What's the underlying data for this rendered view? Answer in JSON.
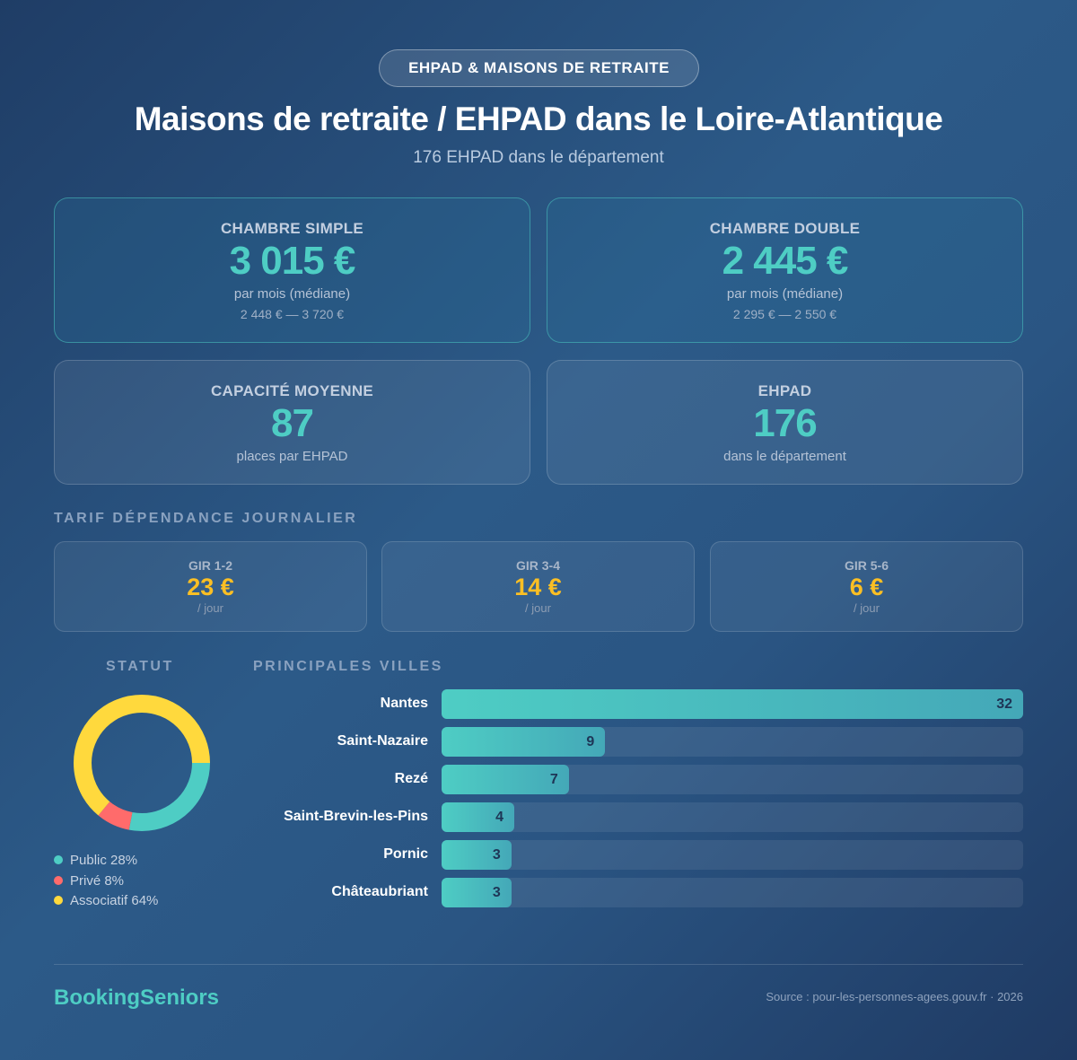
{
  "badge": "EHPAD & MAISONS DE RETRAITE",
  "title": "Maisons de retraite / EHPAD dans le Loire-Atlantique",
  "subtitle": "176 EHPAD dans le département",
  "cards": [
    {
      "label": "CHAMBRE SIMPLE",
      "value": "3 015 €",
      "unit": "par mois (médiane)",
      "range": "2 448 € — 3 720 €"
    },
    {
      "label": "CHAMBRE DOUBLE",
      "value": "2 445 €",
      "unit": "par mois (médiane)",
      "range": "2 295 € — 2 550 €"
    },
    {
      "label": "CAPACITÉ MOYENNE",
      "value": "87",
      "unit": "places par EHPAD"
    },
    {
      "label": "EHPAD",
      "value": "176",
      "unit": "dans le département"
    }
  ],
  "tarif_title": "TARIF DÉPENDANCE JOURNALIER",
  "gir": [
    {
      "label": "GIR 1-2",
      "value": "23 €",
      "unit": "/ jour"
    },
    {
      "label": "GIR 3-4",
      "value": "14 €",
      "unit": "/ jour"
    },
    {
      "label": "GIR 5-6",
      "value": "6 €",
      "unit": "/ jour"
    }
  ],
  "statut": {
    "title": "STATUT",
    "items": [
      {
        "label": "Public 28%",
        "pct": 28,
        "color": "#4ecdc4"
      },
      {
        "label": "Privé 8%",
        "pct": 8,
        "color": "#ff6b6b"
      },
      {
        "label": "Associatif 64%",
        "pct": 64,
        "color": "#ffd93d"
      }
    ]
  },
  "villes": {
    "title": "PRINCIPALES VILLES",
    "items": [
      {
        "name": "Nantes",
        "count": "32"
      },
      {
        "name": "Saint-Nazaire",
        "count": "9"
      },
      {
        "name": "Rezé",
        "count": "7"
      },
      {
        "name": "Saint-Brevin-les-Pins",
        "count": "4"
      },
      {
        "name": "Pornic",
        "count": "3"
      },
      {
        "name": "Châteaubriant",
        "count": "3"
      }
    ]
  },
  "footer": {
    "brand": "BookingSeniors",
    "source": "Source : pour-les-personnes-agees.gouv.fr · 2026"
  }
}
